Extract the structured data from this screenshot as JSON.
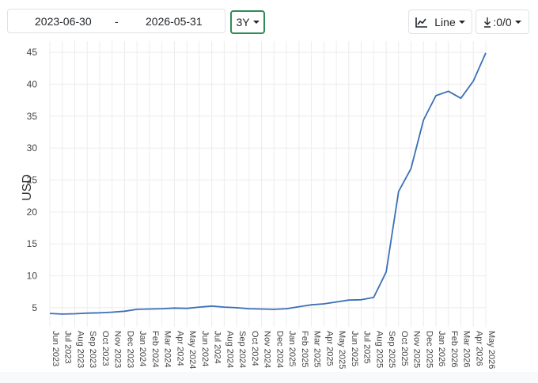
{
  "toolbar": {
    "date_start": "2023-06-30",
    "date_separator": "-",
    "date_end": "2026-05-31",
    "range_label": "3Y",
    "chart_type_label": "Line",
    "download_label": ":0/0"
  },
  "colors": {
    "line": "#3b6fb6",
    "range_border": "#2e8b57",
    "grid": "#ececec"
  },
  "chart_data": {
    "type": "line",
    "ylabel": "USD",
    "xlabel": "",
    "ylim": [
      3,
      46
    ],
    "yticks": [
      5,
      10,
      15,
      20,
      25,
      30,
      35,
      40,
      45
    ],
    "grid": true,
    "categories": [
      "Jun 2023",
      "Jul 2023",
      "Aug 2023",
      "Sep 2023",
      "Oct 2023",
      "Nov 2023",
      "Dec 2023",
      "Jan 2024",
      "Feb 2024",
      "Mar 2024",
      "Apr 2024",
      "May 2024",
      "Jun 2024",
      "Jul 2024",
      "Aug 2024",
      "Sep 2024",
      "Oct 2024",
      "Nov 2024",
      "Dec 2024",
      "Jan 2025",
      "Feb 2025",
      "Mar 2025",
      "Apr 2025",
      "May 2025",
      "Jun 2025",
      "Jul 2025",
      "Aug 2025",
      "Sep 2025",
      "Oct 2025",
      "Nov 2025",
      "Dec 2025",
      "Jan 2026",
      "Feb 2026",
      "Mar 2026",
      "Apr 2026",
      "May 2026"
    ],
    "series": [
      {
        "values": [
          4.1,
          4.0,
          4.05,
          4.15,
          4.2,
          4.3,
          4.45,
          4.75,
          4.8,
          4.85,
          4.95,
          4.9,
          5.1,
          5.25,
          5.1,
          5.0,
          4.85,
          4.8,
          4.75,
          4.85,
          5.15,
          5.45,
          5.6,
          5.9,
          6.2,
          6.25,
          6.6,
          10.6,
          23.2,
          26.8,
          34.4,
          38.2,
          38.9,
          37.8,
          40.5,
          44.9
        ]
      }
    ]
  }
}
